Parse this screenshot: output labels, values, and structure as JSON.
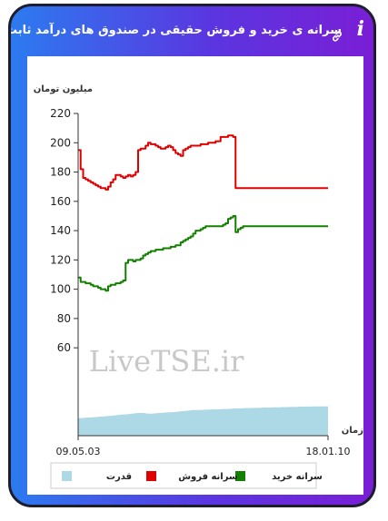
{
  "header": {
    "title": "سرانه ی خرید و فروش حقیقی در صندوق های درآمد ثابت",
    "info_icon": "info-icon",
    "link_icon": "link-icon"
  },
  "colors": {
    "sales": "#e00000",
    "purchase": "#138000",
    "power": "#add8e6"
  },
  "chart_data": {
    "type": "line",
    "ylabel": "میلیون تومان",
    "xlabel": "زمان",
    "watermark": "LiveTSE.ir",
    "y_ticks": [
      "220",
      "200",
      "180",
      "160",
      "140",
      "120",
      "100",
      "80",
      "60"
    ],
    "ylim": [
      0,
      220
    ],
    "x_tick_labels": [
      "09.05.03",
      "18.01.10"
    ],
    "legend": [
      {
        "name": "سرانه خرید",
        "color": "#138000"
      },
      {
        "name": "سرانه فروش",
        "color": "#e00000"
      },
      {
        "name": "قدرت",
        "color": "#add8e6"
      }
    ],
    "x": [
      0,
      1,
      2,
      3,
      4,
      5,
      6,
      7,
      8,
      9,
      10,
      11,
      12,
      13,
      14,
      15,
      16,
      17,
      18,
      19,
      20,
      21,
      22,
      23,
      24,
      25,
      26,
      27,
      28,
      29,
      30,
      31,
      32,
      33,
      34,
      35,
      36,
      37,
      38,
      39,
      40,
      41,
      42,
      43,
      44,
      45,
      46,
      47,
      48,
      49,
      50,
      51,
      52,
      53,
      54,
      55,
      56,
      57,
      58,
      59,
      60,
      61,
      62,
      63,
      64,
      65,
      66,
      67,
      68,
      69,
      70,
      71,
      72,
      73,
      74,
      75,
      76,
      77,
      78,
      79,
      80,
      81,
      82,
      83,
      84,
      85,
      86,
      87,
      88,
      89,
      90,
      91,
      92,
      93,
      94,
      95,
      96,
      97,
      98,
      99,
      100
    ],
    "series": [
      {
        "name": "سرانه فروش",
        "values": [
          195,
          182,
          176,
          175,
          174,
          173,
          172,
          171,
          170,
          169,
          169,
          168,
          170,
          173,
          175,
          178,
          178,
          177,
          176,
          177,
          178,
          177,
          178,
          180,
          195,
          196,
          196,
          198,
          200,
          199,
          199,
          198,
          197,
          196,
          196,
          197,
          198,
          197,
          195,
          193,
          192,
          191,
          195,
          196,
          197,
          198,
          198,
          198,
          198,
          199,
          199,
          199,
          200,
          200,
          200,
          201,
          201,
          204,
          204,
          204,
          205,
          205,
          204,
          169,
          169,
          169,
          169,
          169,
          169,
          169,
          169,
          169,
          169,
          169,
          169,
          169,
          169,
          169,
          169,
          169,
          169,
          169,
          169,
          169,
          169,
          169,
          169,
          169,
          169,
          169,
          169,
          169,
          169,
          169,
          169,
          169,
          169,
          169,
          169,
          169,
          169
        ]
      },
      {
        "name": "سرانه خرید",
        "values": [
          108,
          105,
          105,
          104,
          104,
          103,
          102,
          102,
          101,
          100,
          100,
          99,
          102,
          103,
          103,
          104,
          104,
          105,
          106,
          118,
          120,
          120,
          119,
          120,
          120,
          121,
          123,
          124,
          125,
          126,
          126,
          127,
          127,
          127,
          128,
          128,
          128,
          129,
          129,
          130,
          130,
          132,
          133,
          134,
          135,
          136,
          138,
          140,
          140,
          141,
          142,
          143,
          143,
          143,
          143,
          143,
          143,
          143,
          144,
          145,
          148,
          149,
          150,
          139,
          141,
          142,
          143,
          143,
          143,
          143,
          143,
          143,
          143,
          143,
          143,
          143,
          143,
          143,
          143,
          143,
          143,
          143,
          143,
          143,
          143,
          143,
          143,
          143,
          143,
          143,
          143,
          143,
          143,
          143,
          143,
          143,
          143,
          143,
          143,
          143,
          143
        ]
      },
      {
        "name": "قدرت",
        "values": [
          12,
          12,
          12.2,
          12.4,
          12.4,
          12.5,
          12.6,
          12.8,
          13,
          13,
          13.2,
          13.4,
          13.5,
          13.6,
          13.8,
          14,
          14.2,
          14.4,
          14.5,
          14.6,
          14.8,
          15,
          15.2,
          15.4,
          15.5,
          15.6,
          15.4,
          15.2,
          15,
          15,
          15.2,
          15.3,
          15.5,
          15.6,
          15.7,
          15.9,
          16,
          16,
          16.2,
          16.3,
          16.5,
          16.7,
          16.8,
          17,
          17.2,
          17.4,
          17.5,
          17.5,
          17.6,
          17.6,
          17.7,
          17.8,
          17.8,
          17.9,
          18,
          18,
          18,
          18.1,
          18.2,
          18.2,
          18.3,
          18.4,
          18.5,
          18.6,
          18.6,
          18.7,
          18.8,
          18.8,
          18.8,
          18.9,
          19,
          19,
          19,
          19.1,
          19.2,
          19.2,
          19.2,
          19.3,
          19.4,
          19.4,
          19.4,
          19.5,
          19.5,
          19.5,
          19.6,
          19.6,
          19.6,
          19.7,
          19.8,
          19.8,
          19.8,
          19.8,
          19.9,
          19.9,
          20,
          20,
          20,
          20,
          20,
          20,
          20
        ]
      }
    ]
  }
}
